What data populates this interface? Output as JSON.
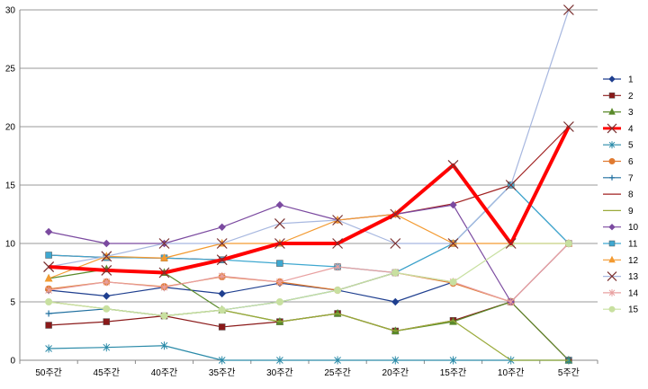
{
  "chart_data": {
    "type": "line",
    "categories": [
      "50주간",
      "45주간",
      "40주간",
      "35주간",
      "30주간",
      "25주간",
      "20주간",
      "15주간",
      "10주간",
      "5주간"
    ],
    "ylim": [
      0,
      30
    ],
    "yticks": [
      0,
      5,
      10,
      15,
      20,
      25,
      30
    ],
    "grid": "horizontal",
    "legend": "right",
    "series": [
      {
        "name": "1",
        "color": "#1f3f8f",
        "marker": "diamond",
        "values": [
          6,
          5.5,
          6.25,
          5.7,
          6.6,
          6,
          5,
          6.7,
          null,
          null
        ]
      },
      {
        "name": "2",
        "color": "#8b1a1a",
        "marker": "square",
        "values": [
          3,
          3.3,
          3.8,
          2.85,
          3.3,
          4,
          2.5,
          3.4,
          5,
          0
        ]
      },
      {
        "name": "3",
        "color": "#5a8a2a",
        "marker": "triangle",
        "values": [
          7,
          7.8,
          7.5,
          4.3,
          3.3,
          4,
          2.5,
          3.3,
          5,
          0
        ]
      },
      {
        "name": "4",
        "color": "#ff0000",
        "marker": "x",
        "values": [
          8,
          7.7,
          7.5,
          8.6,
          10,
          10,
          12.5,
          16.7,
          10,
          20
        ],
        "width": 4
      },
      {
        "name": "5",
        "color": "#2a8aa8",
        "marker": "star",
        "values": [
          1,
          1.1,
          1.25,
          0,
          0,
          0,
          0,
          0,
          0,
          0
        ]
      },
      {
        "name": "6",
        "color": "#e07a30",
        "marker": "circle",
        "values": [
          6.1,
          6.7,
          6.3,
          7.15,
          6.7,
          6,
          7.5,
          6.6,
          5,
          10
        ]
      },
      {
        "name": "7",
        "color": "#1f6f9f",
        "marker": "plus",
        "values": [
          4,
          4.4,
          3.8,
          4.3,
          5,
          6,
          7.5,
          10,
          15,
          10
        ]
      },
      {
        "name": "8",
        "color": "#a02020",
        "marker": "none",
        "values": [
          9,
          8.8,
          8.75,
          8.6,
          10,
          10,
          12.5,
          13.4,
          15,
          20
        ]
      },
      {
        "name": "9",
        "color": "#9aaa3a",
        "marker": "none",
        "values": [
          5,
          4.4,
          3.8,
          4.3,
          3.3,
          4,
          2.5,
          3.4,
          0,
          0
        ]
      },
      {
        "name": "10",
        "color": "#7b4aa0",
        "marker": "diamond",
        "values": [
          11,
          10,
          10,
          11.4,
          13.3,
          12,
          12.5,
          13.3,
          5,
          10
        ]
      },
      {
        "name": "11",
        "color": "#3fa8d0",
        "marker": "square",
        "values": [
          9,
          8.8,
          8.75,
          8.6,
          8.3,
          8,
          7.5,
          10,
          15,
          10
        ]
      },
      {
        "name": "12",
        "color": "#f39a30",
        "marker": "triangle",
        "values": [
          7,
          8.9,
          8.75,
          10,
          10,
          12,
          12.5,
          10,
          10,
          10
        ]
      },
      {
        "name": "13",
        "color": "#a8b8e0",
        "marker": "x",
        "values": [
          8,
          8.9,
          10,
          10,
          11.7,
          12,
          10,
          10,
          15,
          30
        ]
      },
      {
        "name": "14",
        "color": "#e8a0a0",
        "marker": "star",
        "values": [
          6,
          6.7,
          6.25,
          7.2,
          6.7,
          8,
          7.5,
          6.7,
          5,
          10
        ]
      },
      {
        "name": "15",
        "color": "#c8e0a0",
        "marker": "circle",
        "values": [
          5,
          4.4,
          3.8,
          4.3,
          5,
          6,
          7.5,
          6.7,
          10,
          10
        ]
      }
    ]
  }
}
